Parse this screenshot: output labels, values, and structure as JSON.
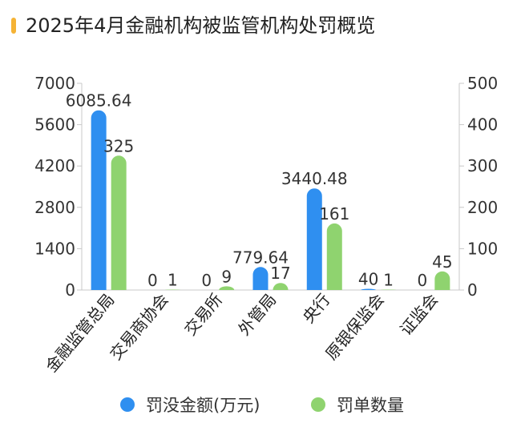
{
  "title": "2025年4月金融机构被监管机构处罚概览",
  "colors": {
    "accent": "#f5b335",
    "series1": "#2f8ff0",
    "series2": "#8fd36f"
  },
  "chart_data": {
    "type": "bar",
    "categories": [
      "金融监管总局",
      "交易商协会",
      "交易所",
      "外管局",
      "央行",
      "原银保监会",
      "证监会"
    ],
    "series": [
      {
        "name": "罚没金额(万元)",
        "axis": "left",
        "values": [
          6085.64,
          0,
          0,
          779.64,
          3440.48,
          40,
          0
        ],
        "labels": [
          "6085.64",
          "0",
          "0",
          "779.64",
          "3440.48",
          "40",
          "0"
        ]
      },
      {
        "name": "罚单数量",
        "axis": "right",
        "values": [
          325,
          1,
          9,
          17,
          161,
          1,
          45
        ],
        "labels": [
          "325",
          "1",
          "9",
          "17",
          "161",
          "1",
          "45"
        ]
      }
    ],
    "yleft": {
      "min": 0,
      "max": 7000,
      "ticks": [
        "0",
        "1400",
        "2800",
        "4200",
        "5600",
        "7000"
      ]
    },
    "yright": {
      "min": 0,
      "max": 500,
      "ticks": [
        "0",
        "100",
        "200",
        "300",
        "400",
        "500"
      ]
    },
    "legend_position": "bottom"
  }
}
